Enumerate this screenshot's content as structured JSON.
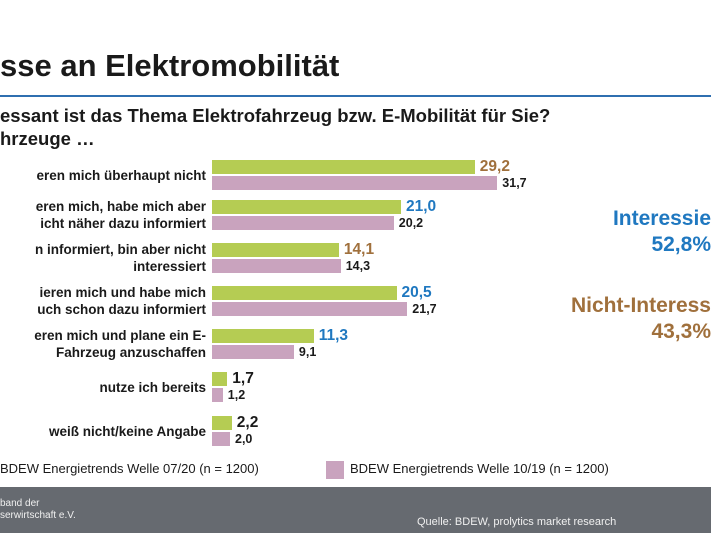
{
  "page": {
    "title": "sse an Elektromobilität",
    "question_line1": "essant ist das Thema Elektrofahrzeug bzw. E-Mobilität für Sie?",
    "question_line2": "hrzeuge …"
  },
  "chart_data": {
    "type": "bar",
    "orientation": "horizontal",
    "categories": [
      [
        "eren mich überhaupt nicht"
      ],
      [
        "eren mich, habe mich aber",
        "icht näher dazu informiert"
      ],
      [
        "n informiert, bin aber nicht",
        "interessiert"
      ],
      [
        "ieren mich und habe mich",
        "uch schon dazu informiert"
      ],
      [
        "eren mich und plane ein E-",
        "Fahrzeug anzuschaffen"
      ],
      [
        "nutze ich bereits"
      ],
      [
        "weiß nicht/keine Angabe"
      ]
    ],
    "series": [
      {
        "name": "BDEW Energietrends Welle 07/20 (n = 1200)",
        "color": "#b5cc53",
        "values": [
          29.2,
          21.0,
          14.1,
          20.5,
          11.3,
          1.7,
          2.2
        ],
        "labels": [
          "29,2",
          "21,0",
          "14,1",
          "20,5",
          "11,3",
          "1,7",
          "2,2"
        ],
        "label_colors": [
          "#a0703c",
          "#1f78c0",
          "#a0703c",
          "#1f78c0",
          "#1f78c0",
          "#1a1a1a",
          "#1a1a1a"
        ]
      },
      {
        "name": "BDEW Energietrends Welle 10/19 (n = 1200)",
        "color": "#c9a3be",
        "values": [
          31.7,
          20.2,
          14.3,
          21.7,
          9.1,
          1.2,
          2.0
        ],
        "labels": [
          "31,7",
          "20,2",
          "14,3",
          "21,7",
          "9,1",
          "1,2",
          "2,0"
        ]
      }
    ],
    "summaries": [
      {
        "label": "Interessie",
        "value": "52,8%",
        "color": "#1f78c0"
      },
      {
        "label": "Nicht-Interess",
        "value": "43,3%",
        "color": "#a0703c"
      }
    ]
  },
  "footer": {
    "org_line1": "band der",
    "org_line2": "serwirtschaft e.V.",
    "source": "Quelle: BDEW, prolytics market research",
    "bg": "#666a70"
  }
}
